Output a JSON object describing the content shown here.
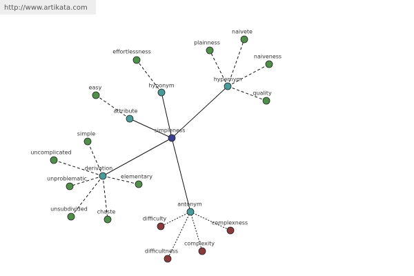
{
  "header": {
    "url": "http://www.artikata.com"
  },
  "nodes": [
    {
      "label": "simpleness"
    },
    {
      "label": "hyponym"
    },
    {
      "label": "hypernym"
    },
    {
      "label": "attribute"
    },
    {
      "label": "derivation"
    },
    {
      "label": "antonym"
    },
    {
      "label": "effortlessness"
    },
    {
      "label": "plainness"
    },
    {
      "label": "naivete"
    },
    {
      "label": "naiveness"
    },
    {
      "label": "quality"
    },
    {
      "label": "easy"
    },
    {
      "label": "simple"
    },
    {
      "label": "uncomplicated"
    },
    {
      "label": "unproblematic"
    },
    {
      "label": "elementary"
    },
    {
      "label": "unsubdivided"
    },
    {
      "label": "chaste"
    },
    {
      "label": "difficulty"
    },
    {
      "label": "complexness"
    },
    {
      "label": "complexity"
    },
    {
      "label": "difficultness"
    }
  ]
}
